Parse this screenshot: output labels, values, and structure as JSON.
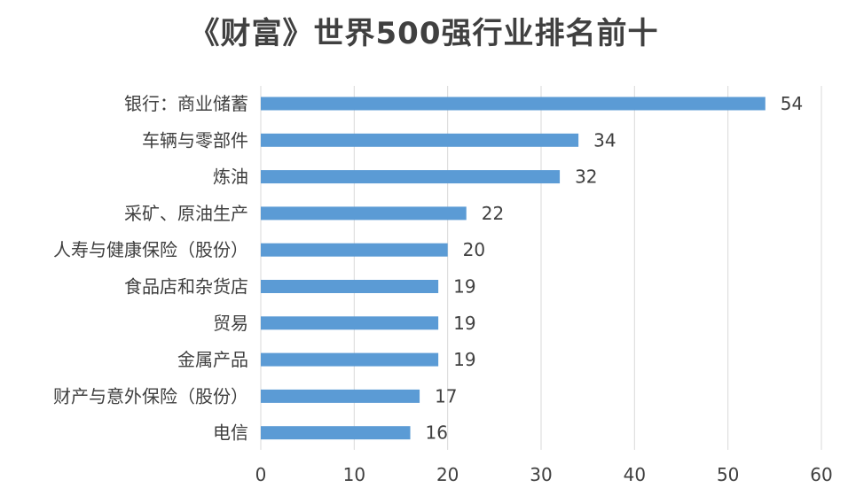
{
  "chart_data": {
    "type": "bar",
    "orientation": "horizontal",
    "title": "《财富》世界500强行业排名前十",
    "categories": [
      "银行：商业储蓄",
      "车辆与零部件",
      "炼油",
      "采矿、原油生产",
      "人寿与健康保险（股份）",
      "食品店和杂货店",
      "贸易",
      "金属产品",
      "财产与意外保险（股份）",
      "电信"
    ],
    "values": [
      54,
      34,
      32,
      22,
      20,
      19,
      19,
      19,
      17,
      16
    ],
    "xlim": [
      0,
      60
    ],
    "xticks": [
      0,
      10,
      20,
      30,
      40,
      50,
      60
    ],
    "grid": true,
    "bar_color": "#5b9bd5"
  }
}
